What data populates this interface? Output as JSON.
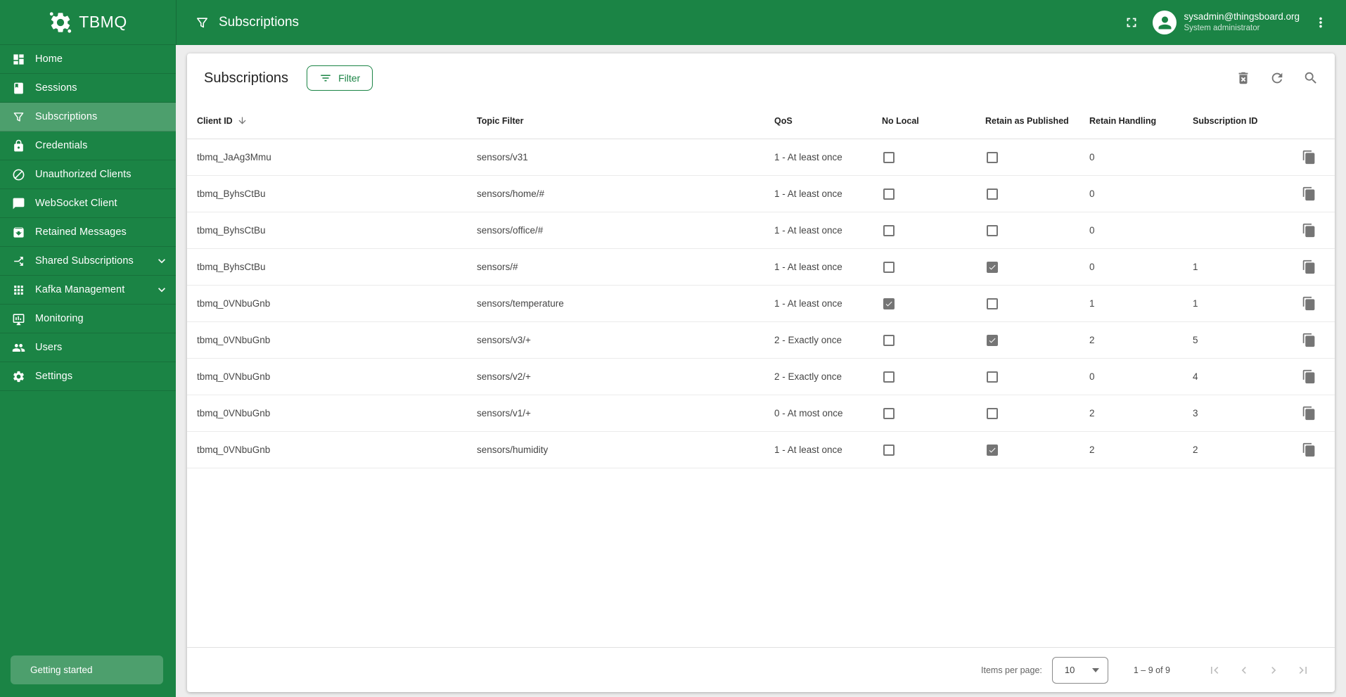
{
  "app": {
    "name": "TBMQ",
    "logo_icon": "tbmq-gear-logo-icon"
  },
  "colors": {
    "primary_green": "#1B8445",
    "icon_gray": "#757575",
    "checkbox_gray": "#757575"
  },
  "topbar": {
    "title": "Subscriptions",
    "title_icon": "filter-funnel-icon",
    "fullscreen_icon": "fullscreen-icon",
    "more_icon": "more-vert-icon",
    "user": {
      "email": "sysadmin@thingsboard.org",
      "role": "System administrator",
      "avatar_icon": "person-icon"
    }
  },
  "sidebar": {
    "items": [
      {
        "label": "Home",
        "icon": "home-icon",
        "active": false,
        "expandable": false
      },
      {
        "label": "Sessions",
        "icon": "sessions-book-icon",
        "active": false,
        "expandable": false
      },
      {
        "label": "Subscriptions",
        "icon": "filter-funnel-icon",
        "active": true,
        "expandable": false
      },
      {
        "label": "Credentials",
        "icon": "lock-icon",
        "active": false,
        "expandable": false
      },
      {
        "label": "Unauthorized Clients",
        "icon": "block-icon",
        "active": false,
        "expandable": false
      },
      {
        "label": "WebSocket Client",
        "icon": "chat-bubble-icon",
        "active": false,
        "expandable": false
      },
      {
        "label": "Retained Messages",
        "icon": "archive-icon",
        "active": false,
        "expandable": false
      },
      {
        "label": "Shared Subscriptions",
        "icon": "call-split-icon",
        "active": false,
        "expandable": true
      },
      {
        "label": "Kafka Management",
        "icon": "apps-grid-icon",
        "active": false,
        "expandable": true
      },
      {
        "label": "Monitoring",
        "icon": "monitoring-icon",
        "active": false,
        "expandable": false
      },
      {
        "label": "Users",
        "icon": "users-icon",
        "active": false,
        "expandable": false
      },
      {
        "label": "Settings",
        "icon": "gear-icon",
        "active": false,
        "expandable": false
      }
    ],
    "getting_started": "Getting started"
  },
  "card": {
    "title": "Subscriptions",
    "filter_button": "Filter",
    "filter_button_icon": "filter-list-icon",
    "toolbar": [
      {
        "name": "delete-button",
        "icon": "delete-forever-icon"
      },
      {
        "name": "refresh-button",
        "icon": "refresh-icon"
      },
      {
        "name": "search-button",
        "icon": "search-icon"
      }
    ]
  },
  "table": {
    "columns": [
      "Client ID",
      "Topic Filter",
      "QoS",
      "No Local",
      "Retain as Published",
      "Retain Handling",
      "Subscription ID"
    ],
    "sort": {
      "column": "Client ID",
      "direction": "desc",
      "icon": "sort-arrow-down-icon"
    },
    "row_action_icon": "content-copy-icon",
    "rows": [
      {
        "client_id": "tbmq_JaAg3Mmu",
        "topic_filter": "sensors/v31",
        "qos": "1 - At least once",
        "no_local": false,
        "retain_as_published": false,
        "retain_handling": "0",
        "subscription_id": ""
      },
      {
        "client_id": "tbmq_ByhsCtBu",
        "topic_filter": "sensors/home/#",
        "qos": "1 - At least once",
        "no_local": false,
        "retain_as_published": false,
        "retain_handling": "0",
        "subscription_id": ""
      },
      {
        "client_id": "tbmq_ByhsCtBu",
        "topic_filter": "sensors/office/#",
        "qos": "1 - At least once",
        "no_local": false,
        "retain_as_published": false,
        "retain_handling": "0",
        "subscription_id": ""
      },
      {
        "client_id": "tbmq_ByhsCtBu",
        "topic_filter": "sensors/#",
        "qos": "1 - At least once",
        "no_local": false,
        "retain_as_published": true,
        "retain_handling": "0",
        "subscription_id": "1"
      },
      {
        "client_id": "tbmq_0VNbuGnb",
        "topic_filter": "sensors/temperature",
        "qos": "1 - At least once",
        "no_local": true,
        "retain_as_published": false,
        "retain_handling": "1",
        "subscription_id": "1"
      },
      {
        "client_id": "tbmq_0VNbuGnb",
        "topic_filter": "sensors/v3/+",
        "qos": "2 - Exactly once",
        "no_local": false,
        "retain_as_published": true,
        "retain_handling": "2",
        "subscription_id": "5"
      },
      {
        "client_id": "tbmq_0VNbuGnb",
        "topic_filter": "sensors/v2/+",
        "qos": "2 - Exactly once",
        "no_local": false,
        "retain_as_published": false,
        "retain_handling": "0",
        "subscription_id": "4"
      },
      {
        "client_id": "tbmq_0VNbuGnb",
        "topic_filter": "sensors/v1/+",
        "qos": "0 - At most once",
        "no_local": false,
        "retain_as_published": false,
        "retain_handling": "2",
        "subscription_id": "3"
      },
      {
        "client_id": "tbmq_0VNbuGnb",
        "topic_filter": "sensors/humidity",
        "qos": "1 - At least once",
        "no_local": false,
        "retain_as_published": true,
        "retain_handling": "2",
        "subscription_id": "2"
      }
    ]
  },
  "paginator": {
    "items_per_page_label": "Items per page:",
    "items_per_page_value": "10",
    "range_label": "1 – 9 of 9",
    "buttons": [
      {
        "name": "first-page-button",
        "icon": "first-page-icon"
      },
      {
        "name": "prev-page-button",
        "icon": "chevron-left-icon"
      },
      {
        "name": "next-page-button",
        "icon": "chevron-right-icon"
      },
      {
        "name": "last-page-button",
        "icon": "last-page-icon"
      }
    ]
  }
}
